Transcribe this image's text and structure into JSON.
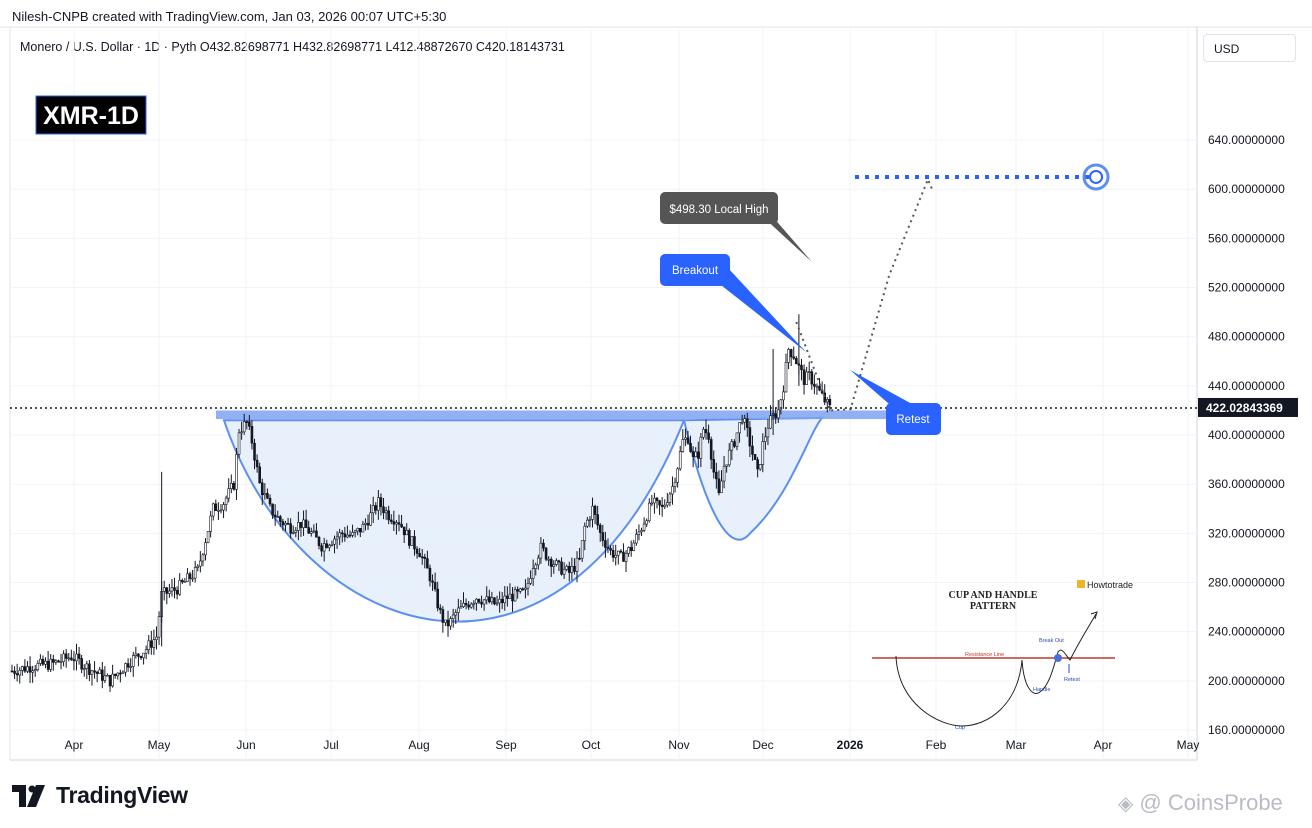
{
  "header": {
    "text": "Nilesh-CNPB created with TradingView.com, Jan 03, 2026 00:07 UTC+5:30"
  },
  "legend": {
    "text": "Monero / U.S. Dollar · 1D · Pyth  O432.82698771  H432.82698771  L412.48872670  C420.18143731"
  },
  "currency_button": {
    "label": "USD"
  },
  "ticker_box": {
    "label": "XMR-1D"
  },
  "price_tag": {
    "label": "422.02843369"
  },
  "annotations": {
    "local_high": "$498.30 Local High",
    "breakout": "Breakout",
    "retest": "Retest"
  },
  "inset": {
    "title_line1": "CUP AND HANDLE",
    "title_line2": "PATTERN",
    "brand": "Howtotrade",
    "resistance": "Resistance Line",
    "breakout": "Break Out",
    "handle": "Handle",
    "retest": "Retest",
    "cup": "Cup"
  },
  "footer": {
    "logo_text": "TradingView",
    "watermark": "@ CoinsProbe"
  },
  "colors": {
    "accent": "#2962ff",
    "zone": "#7fa3f2",
    "cup_fill": "#e4edfc",
    "cup_line": "#5c8ff0",
    "candle": "#131722",
    "annotation_dark": "#4a4a4a"
  },
  "chart_data": {
    "type": "candlestick",
    "y_ticks": [
      160,
      200,
      240,
      280,
      320,
      360,
      400,
      440,
      480,
      520,
      560,
      600,
      640
    ],
    "y_tick_labels": [
      "160.00000000",
      "200.00000000",
      "240.00000000",
      "280.00000000",
      "320.00000000",
      "360.00000000",
      "400.00000000",
      "440.00000000",
      "480.00000000",
      "520.00000000",
      "560.00000000",
      "600.00000000",
      "640.00000000"
    ],
    "ylim": [
      120,
      680
    ],
    "x_ticks": [
      "Apr",
      "May",
      "Jun",
      "Jul",
      "Aug",
      "Sep",
      "Oct",
      "Nov",
      "Dec",
      "2026",
      "Feb",
      "Mar",
      "Apr",
      "May"
    ],
    "current_price": 422.02843369,
    "resistance_zone": [
      413,
      420
    ],
    "target": 610,
    "local_high": 498.3,
    "close_points": [
      [
        0,
        208
      ],
      [
        8,
        212
      ],
      [
        16,
        214
      ],
      [
        23,
        220
      ],
      [
        30,
        210
      ],
      [
        38,
        200
      ],
      [
        45,
        215
      ],
      [
        52,
        226
      ],
      [
        56,
        236
      ],
      [
        58,
        270
      ],
      [
        64,
        275
      ],
      [
        72,
        290
      ],
      [
        78,
        340
      ],
      [
        82,
        345
      ],
      [
        86,
        360
      ],
      [
        88,
        404
      ],
      [
        91,
        410
      ],
      [
        93,
        395
      ],
      [
        96,
        360
      ],
      [
        100,
        340
      ],
      [
        104,
        330
      ],
      [
        108,
        325
      ],
      [
        112,
        328
      ],
      [
        116,
        320
      ],
      [
        120,
        310
      ],
      [
        124,
        315
      ],
      [
        128,
        320
      ],
      [
        132,
        318
      ],
      [
        136,
        325
      ],
      [
        140,
        338
      ],
      [
        142,
        345
      ],
      [
        146,
        335
      ],
      [
        150,
        330
      ],
      [
        154,
        315
      ],
      [
        158,
        305
      ],
      [
        162,
        285
      ],
      [
        164,
        270
      ],
      [
        166,
        255
      ],
      [
        168,
        245
      ],
      [
        170,
        248
      ],
      [
        172,
        255
      ],
      [
        176,
        262
      ],
      [
        180,
        268
      ],
      [
        184,
        265
      ],
      [
        188,
        262
      ],
      [
        192,
        268
      ],
      [
        196,
        270
      ],
      [
        199,
        272
      ],
      [
        202,
        295
      ],
      [
        205,
        308
      ],
      [
        208,
        300
      ],
      [
        212,
        292
      ],
      [
        216,
        288
      ],
      [
        220,
        298
      ],
      [
        222,
        325
      ],
      [
        225,
        340
      ],
      [
        228,
        320
      ],
      [
        232,
        305
      ],
      [
        236,
        300
      ],
      [
        240,
        308
      ],
      [
        244,
        325
      ],
      [
        248,
        345
      ],
      [
        252,
        340
      ],
      [
        256,
        358
      ],
      [
        258,
        375
      ],
      [
        260,
        395
      ],
      [
        262,
        398
      ],
      [
        264,
        380
      ],
      [
        266,
        385
      ],
      [
        268,
        405
      ],
      [
        270,
        400
      ],
      [
        272,
        370
      ],
      [
        274,
        350
      ],
      [
        276,
        375
      ],
      [
        280,
        395
      ],
      [
        283,
        415
      ],
      [
        285,
        402
      ],
      [
        287,
        385
      ],
      [
        289,
        368
      ],
      [
        291,
        392
      ],
      [
        293,
        408
      ],
      [
        295,
        415
      ],
      [
        297,
        420
      ],
      [
        299,
        440
      ],
      [
        301,
        470
      ],
      [
        303,
        465
      ],
      [
        305,
        455
      ],
      [
        307,
        445
      ],
      [
        309,
        448
      ],
      [
        311,
        442
      ],
      [
        313,
        435
      ],
      [
        315,
        428
      ],
      [
        317,
        422
      ]
    ],
    "projection": [
      [
        317,
        420
      ],
      [
        325,
        421
      ],
      [
        340,
        530
      ],
      [
        355,
        608
      ]
    ]
  }
}
